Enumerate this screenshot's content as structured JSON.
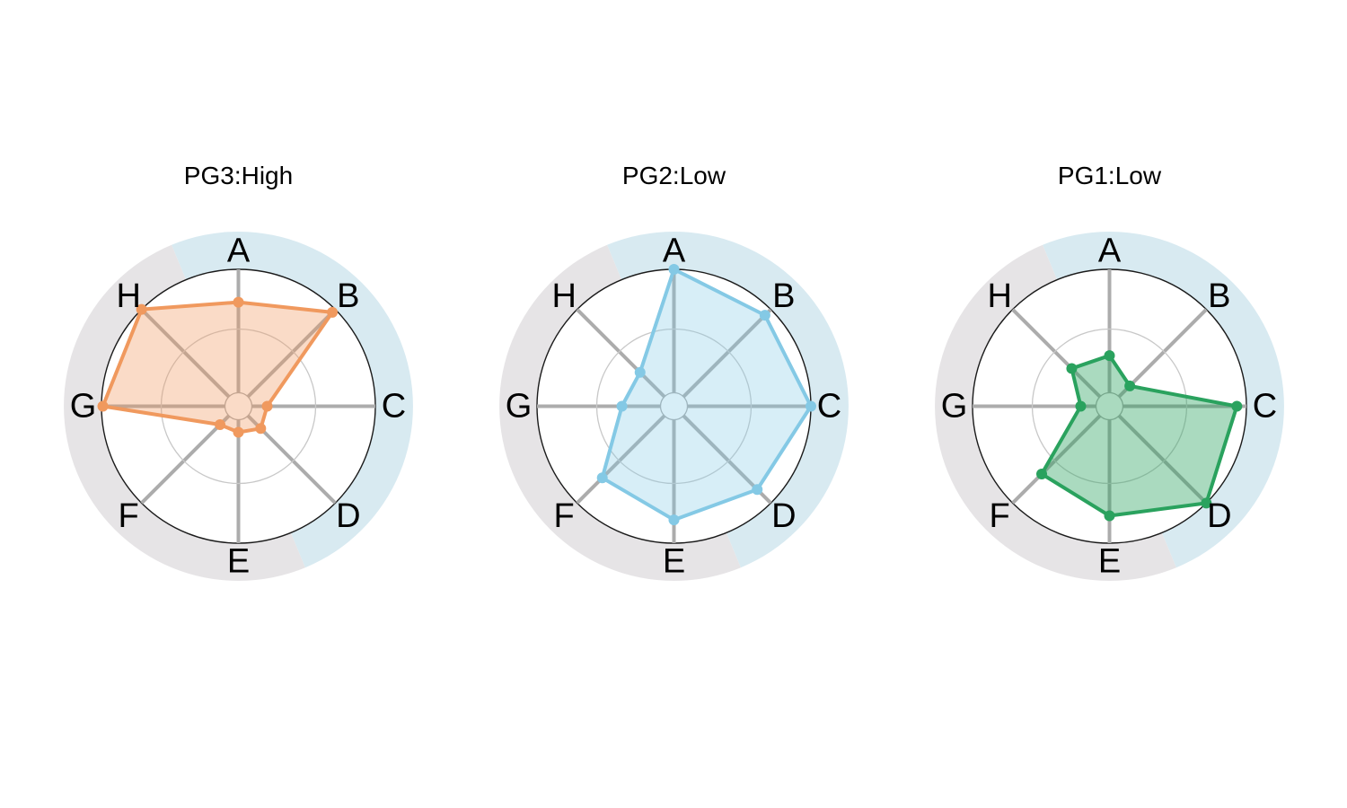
{
  "figure": {
    "background_color": "#ffffff",
    "description_axes": [
      "A",
      "B",
      "C",
      "D",
      "E",
      "F",
      "G",
      "H"
    ]
  },
  "chart_data": [
    {
      "type": "radar",
      "title": "PG3:High",
      "categories": [
        "A",
        "B",
        "C",
        "D",
        "E",
        "F",
        "G",
        "H"
      ],
      "values": [
        0.76,
        0.97,
        0.21,
        0.23,
        0.19,
        0.19,
        0.99,
        1.0
      ],
      "scale": [
        0,
        1
      ],
      "series_color": "#F0995E",
      "fill_rgba": "rgba(240,153,94,0.35)"
    },
    {
      "type": "radar",
      "title": "PG2:Low",
      "categories": [
        "A",
        "B",
        "C",
        "D",
        "E",
        "F",
        "G",
        "H"
      ],
      "values": [
        1.0,
        0.94,
        1.0,
        0.86,
        0.83,
        0.74,
        0.38,
        0.35
      ],
      "scale": [
        0,
        1
      ],
      "series_color": "#84C9E5",
      "fill_rgba": "rgba(132,201,229,0.32)"
    },
    {
      "type": "radar",
      "title": "PG1:Low",
      "categories": [
        "A",
        "B",
        "C",
        "D",
        "E",
        "F",
        "G",
        "H"
      ],
      "values": [
        0.37,
        0.21,
        0.93,
        1.0,
        0.8,
        0.7,
        0.21,
        0.39
      ],
      "scale": [
        0,
        1
      ],
      "series_color": "#2AA25E",
      "fill_rgba": "rgba(42,162,94,0.40)"
    }
  ],
  "style": {
    "ring_highlight_color": "#D8EAF1",
    "ring_base_color": "#E6E4E6",
    "ring_highlight_axes": [
      "A",
      "B",
      "C",
      "D"
    ],
    "ring_highlight_arc_deg": [
      -22.5,
      157.5
    ],
    "outer_circle_color": "#1A1A1A",
    "spoke_color": "#ACACAC",
    "gridline_color": "#C8C8C8",
    "center_circle_fill": "#FFFFFF",
    "label_color": "#000000",
    "title_color": "#000000"
  }
}
